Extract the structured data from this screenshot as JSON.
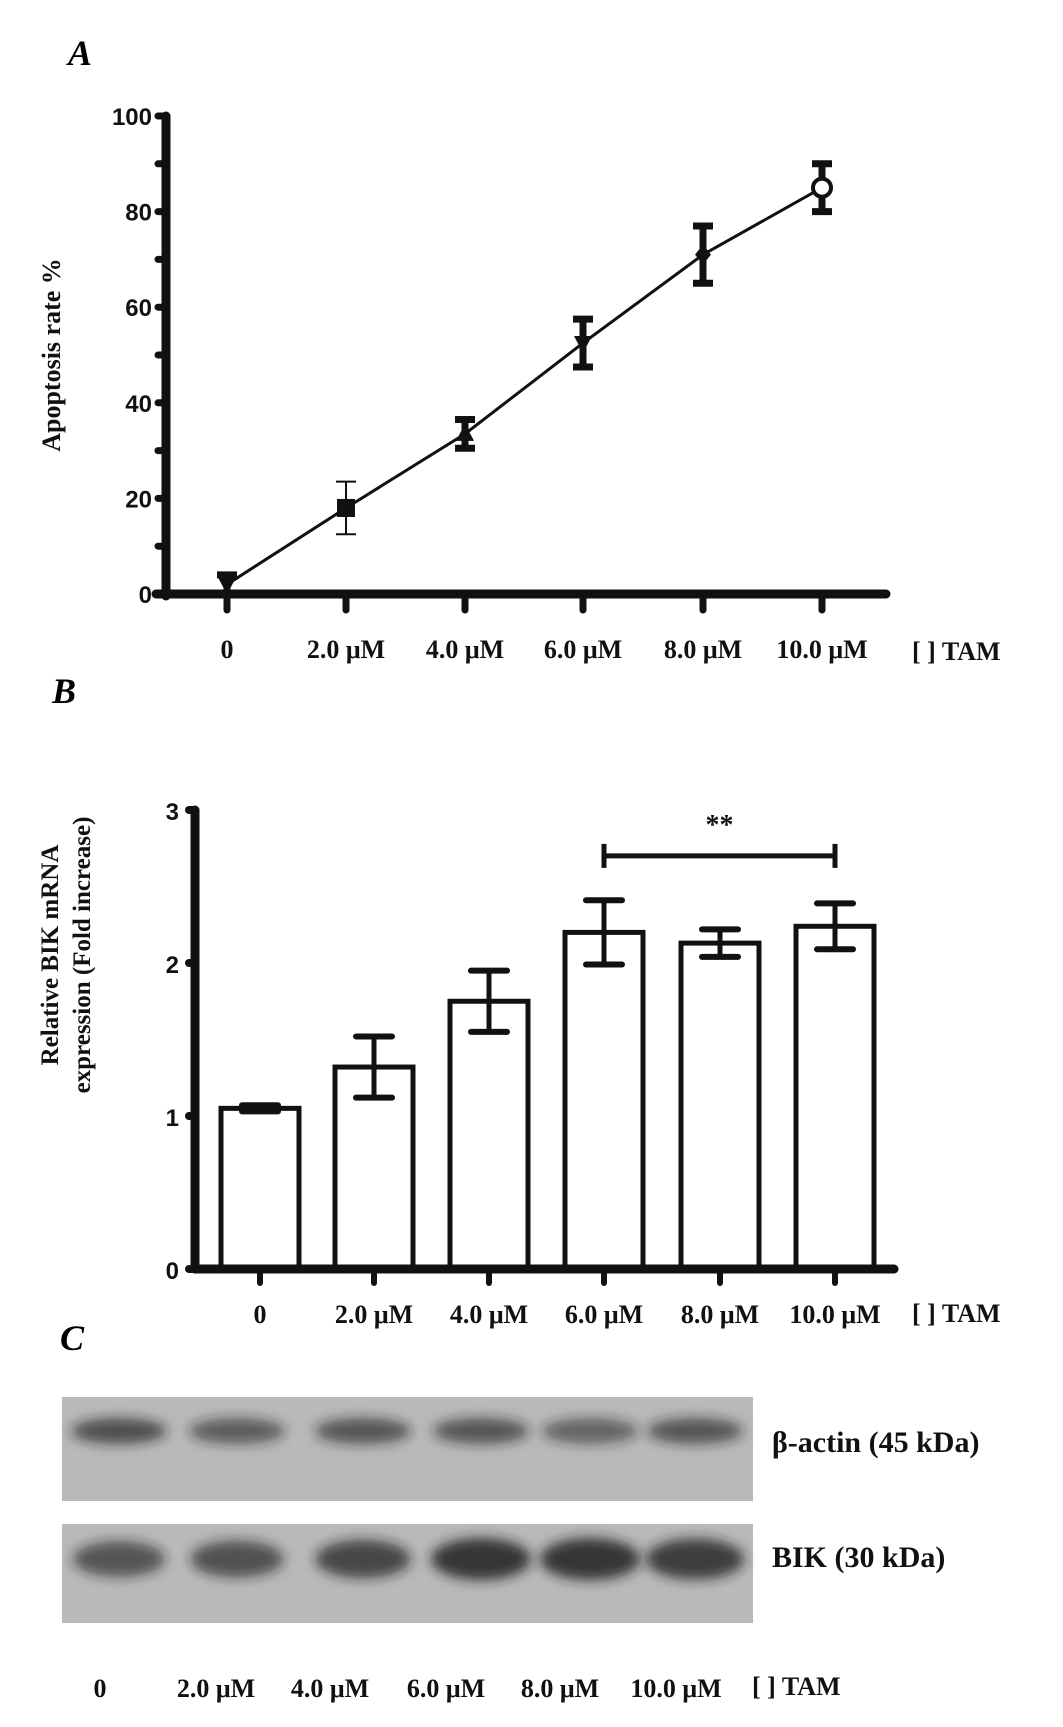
{
  "chart_data": [
    {
      "panel": "A",
      "type": "line",
      "categories": [
        "0",
        "2.0 μM",
        "4.0 μM",
        "6.0 μM",
        "8.0 μM",
        "10.0 μM"
      ],
      "x_suffix_label": "[ ] TAM",
      "values": [
        2,
        18,
        33.5,
        52.5,
        71,
        85
      ],
      "errors": [
        2,
        5.5,
        3,
        5,
        6,
        5
      ],
      "markers": [
        "triangle-down",
        "square",
        "triangle-up",
        "triangle-down",
        "diamond",
        "circle"
      ],
      "ylabel": "Apoptosis rate %",
      "ylim": [
        0,
        100
      ],
      "yticks": [
        "0",
        "20",
        "40",
        "60",
        "80",
        "100"
      ]
    },
    {
      "panel": "B",
      "type": "bar",
      "categories": [
        "0",
        "2.0 μM",
        "4.0 μM",
        "6.0 μM",
        "8.0 μM",
        "10.0 μM"
      ],
      "x_suffix_label": "[ ] TAM",
      "values": [
        1.05,
        1.32,
        1.75,
        2.2,
        2.13,
        2.24
      ],
      "errors": [
        0.02,
        0.2,
        0.2,
        0.21,
        0.09,
        0.15
      ],
      "ylabel_line1": "Relative  BIK mRNA",
      "ylabel_line2": "expression  (Fold increase)",
      "ylim": [
        0,
        3
      ],
      "yticks": [
        "0",
        "1",
        "2",
        "3"
      ],
      "significance": {
        "from": "6.0 μM",
        "to": "10.0 μM",
        "label": "**"
      }
    },
    {
      "panel": "C",
      "type": "blot",
      "lanes": [
        "0",
        "2.0 μM",
        "4.0 μM",
        "6.0 μM",
        "8.0 μM",
        "10.0 μM"
      ],
      "x_suffix_label": "[ ] TAM",
      "rows": [
        {
          "label": "β-actin (45 kDa)",
          "intensity": [
            0.8,
            0.7,
            0.75,
            0.75,
            0.65,
            0.75
          ]
        },
        {
          "label": "BIK (30 kDa)",
          "intensity": [
            0.75,
            0.78,
            0.85,
            1.0,
            1.0,
            0.95
          ]
        }
      ]
    }
  ],
  "panels": {
    "a": "A",
    "b": "B",
    "c": "C"
  }
}
